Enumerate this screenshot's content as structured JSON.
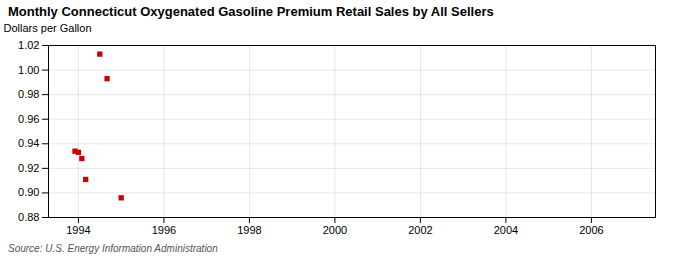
{
  "chart_data": {
    "type": "scatter",
    "title": "Monthly Connecticut Oxygenated Gasoline Premium Retail Sales by All Sellers",
    "ylabel": "Dollars per Gallon",
    "annotations": [
      "Source: U.S. Energy Information Administration"
    ],
    "x": [
      1993.92,
      1994.0,
      1994.08,
      1994.17,
      1994.5,
      1994.67,
      1995.0
    ],
    "values": [
      0.934,
      0.933,
      0.928,
      0.911,
      1.013,
      0.993,
      0.896
    ],
    "color": "#cc0000",
    "marker": "square",
    "xlim": [
      1993.3,
      2007.5
    ],
    "ylim": [
      0.88,
      1.02
    ],
    "xticks": [
      1994,
      1996,
      1998,
      2000,
      2002,
      2004,
      2006
    ],
    "yticks": [
      0.88,
      {
        "value": 0.9,
        "label": "0.90"
      },
      0.92,
      0.94,
      0.96,
      0.98,
      {
        "value": 1,
        "label": "1.00"
      },
      1.02
    ],
    "grid": true
  }
}
